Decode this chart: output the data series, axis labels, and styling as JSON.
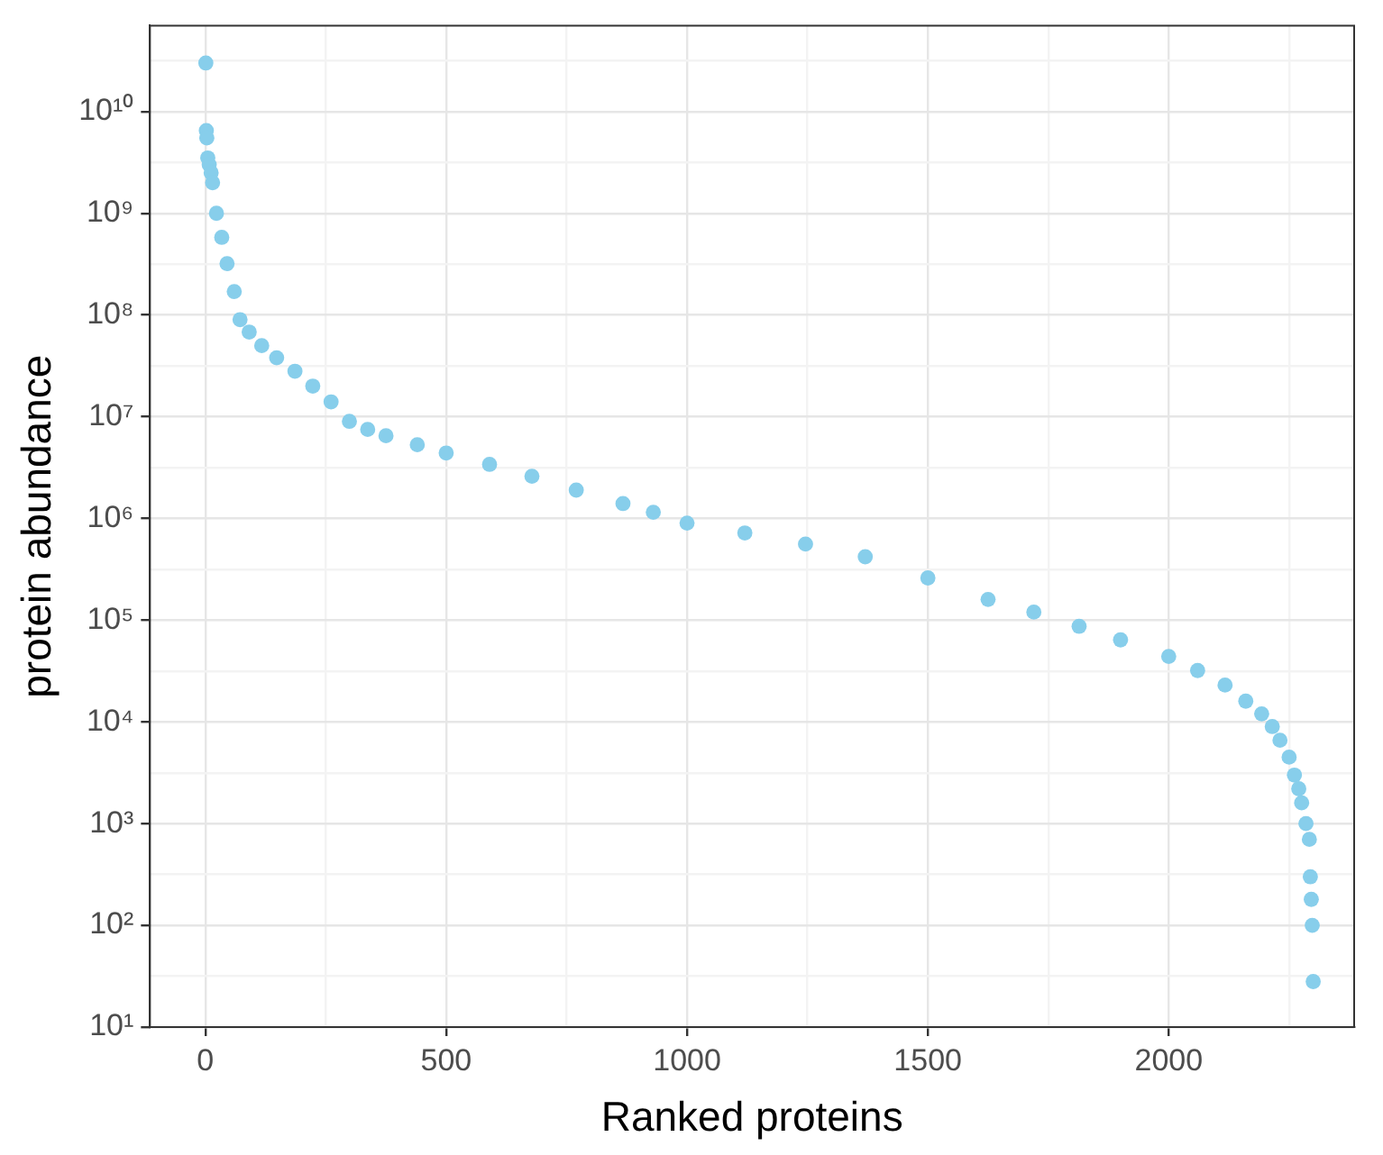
{
  "chart_data": {
    "type": "scatter",
    "xlabel": "Ranked proteins",
    "ylabel": "protein abundance",
    "log": "y",
    "grid": true,
    "legend": false,
    "marker": "circle",
    "xlim": [
      -115,
      2385
    ],
    "xticks": [
      0,
      {
        "value": 250,
        "label": null
      },
      500,
      {
        "value": 750,
        "label": null
      },
      1000,
      {
        "value": 1250,
        "label": null
      },
      1500,
      {
        "value": 1750,
        "label": null
      },
      2000,
      {
        "value": 2250,
        "label": null
      }
    ],
    "ylim": [
      10,
      70000000000
    ],
    "yticks": [
      {
        "value": 10,
        "label": "10¹"
      },
      {
        "value": 31.6,
        "label": null
      },
      {
        "value": 100,
        "label": "10²"
      },
      {
        "value": 316,
        "label": null
      },
      {
        "value": 1000,
        "label": "10³"
      },
      {
        "value": 3160,
        "label": null
      },
      {
        "value": 10000,
        "label": "10⁴"
      },
      {
        "value": 31600,
        "label": null
      },
      {
        "value": 100000,
        "label": "10⁵"
      },
      {
        "value": 316000,
        "label": null
      },
      {
        "value": 1000000,
        "label": "10⁶"
      },
      {
        "value": 3160000,
        "label": null
      },
      {
        "value": 10000000,
        "label": "10⁷"
      },
      {
        "value": 31600000,
        "label": null
      },
      {
        "value": 100000000,
        "label": "10⁸"
      },
      {
        "value": 316000000,
        "label": null
      },
      {
        "value": 1000000000,
        "label": "10⁹"
      },
      {
        "value": 3160000000,
        "label": null
      },
      {
        "value": 10000000000,
        "label": "10¹⁰"
      },
      {
        "value": 31600000000,
        "label": null
      }
    ],
    "series": [
      {
        "color": "#87ceeb",
        "x": [
          1,
          2,
          3,
          5,
          8,
          12,
          15,
          23,
          34,
          45,
          60,
          72,
          91,
          117,
          148,
          186,
          223,
          261,
          299,
          337,
          375,
          440,
          500,
          590,
          678,
          770,
          867,
          930,
          1000,
          1120,
          1246,
          1370,
          1500,
          1625,
          1720,
          1814,
          1900,
          2000,
          2060,
          2117,
          2160,
          2193,
          2215,
          2231,
          2250,
          2261,
          2270,
          2276,
          2285,
          2292,
          2294,
          2296,
          2298,
          2300
        ],
        "values": [
          30000000000,
          6500000000,
          5500000000,
          3500000000,
          3000000000,
          2500000000,
          2000000000,
          1000000000,
          580000000,
          320000000,
          170000000,
          90000000,
          68000000,
          50000000,
          38000000,
          28000000,
          20000000,
          14000000,
          9000000,
          7500000,
          6500000,
          5300000,
          4400000,
          3400000,
          2600000,
          1900000,
          1400000,
          1150000,
          900000,
          720000,
          560000,
          420000,
          260000,
          160000,
          120000,
          87000,
          64000,
          44000,
          32000,
          23000,
          16000,
          12000,
          9000,
          6600,
          4500,
          3000,
          2200,
          1600,
          1000,
          700,
          300,
          180,
          100,
          28
        ]
      }
    ]
  }
}
